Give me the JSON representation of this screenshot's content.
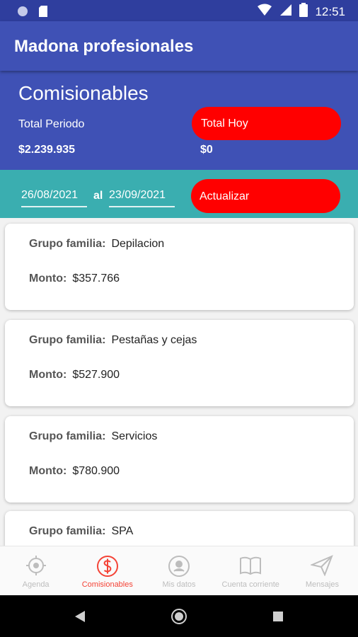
{
  "status_bar": {
    "time": "12:51"
  },
  "app_bar": {
    "title": "Madona profesionales"
  },
  "summary": {
    "title": "Comisionables",
    "total_periodo_label": "Total Periodo",
    "total_periodo_value": "$2.239.935",
    "total_hoy_label": "Total Hoy",
    "total_hoy_value": "$0"
  },
  "date_filter": {
    "from": "26/08/2021",
    "separator": "al",
    "to": "23/09/2021",
    "button_label": "Actualizar"
  },
  "cards": [
    {
      "grupo_label": "Grupo familia:",
      "grupo_value": "Depilacion",
      "monto_label": "Monto:",
      "monto_value": "$357.766"
    },
    {
      "grupo_label": "Grupo familia:",
      "grupo_value": "Pestañas y cejas",
      "monto_label": "Monto:",
      "monto_value": "$527.900"
    },
    {
      "grupo_label": "Grupo familia:",
      "grupo_value": "Servicios",
      "monto_label": "Monto:",
      "monto_value": "$780.900"
    },
    {
      "grupo_label": "Grupo familia:",
      "grupo_value": "SPA",
      "monto_label": "",
      "monto_value": ""
    }
  ],
  "bottom_nav": {
    "items": [
      {
        "label": "Agenda",
        "icon": "crosshair-icon",
        "active": false
      },
      {
        "label": "Comisionables",
        "icon": "dollar-circle-icon",
        "active": true
      },
      {
        "label": "Mis datos",
        "icon": "account-circle-icon",
        "active": false
      },
      {
        "label": "Cuenta corriente",
        "icon": "open-book-icon",
        "active": false
      },
      {
        "label": "Mensajes",
        "icon": "send-icon",
        "active": false
      }
    ]
  },
  "colors": {
    "primary": "#3f51b5",
    "status_bar": "#2f3e9e",
    "teal": "#3aaeb0",
    "accent_red": "#ff0000",
    "nav_active": "#f44336",
    "nav_inactive": "#bdbdbd"
  }
}
